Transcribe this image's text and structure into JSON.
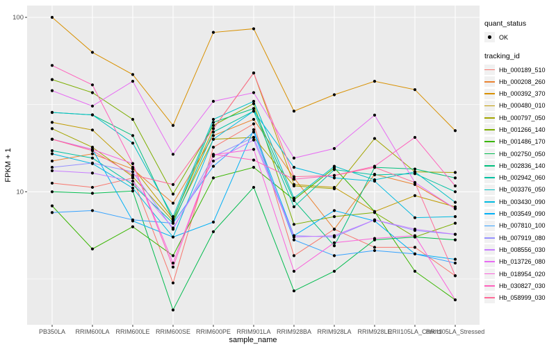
{
  "chart_data": {
    "type": "line",
    "title": "",
    "xlabel": "sample_name",
    "ylabel": "FPKM + 1",
    "y_scale": "log10",
    "ylim": [
      1.73,
      117
    ],
    "grid": "on",
    "legend_position": "right",
    "panel_bg": "#ebebeb",
    "grid_color": "#ffffff",
    "point_color": "#000000",
    "tick_label_color": "#4d4d4d",
    "y_ticks": [
      {
        "value": 10,
        "label": "10"
      },
      {
        "value": 100,
        "label": "100"
      }
    ],
    "y_minor_ticks": [
      3.162,
      31.62
    ],
    "categories": [
      "PB350LA",
      "RRIM600LA",
      "RRIM600LE",
      "RRIM600SE",
      "RRIM600PE",
      "RRIM901LA",
      "RRIM928BA",
      "RRIM928LA",
      "RRIM928LE",
      "RRII105LA_Control",
      "RRII105LA_Stressed"
    ],
    "series": [
      {
        "name": "Hb_000189_510",
        "color": "#F8766D",
        "values": [
          11.2,
          10.6,
          12,
          3,
          18,
          24.5,
          4.3,
          6.1,
          4.8,
          4.8,
          3.3
        ]
      },
      {
        "name": "Hb_000208_260",
        "color": "#EA8331",
        "values": [
          15,
          16.5,
          13.5,
          8.6,
          21,
          26,
          12,
          6.1,
          12.6,
          11,
          8
        ]
      },
      {
        "name": "Hb_000392_370",
        "color": "#D89000",
        "values": [
          100,
          63,
          47,
          24,
          82,
          86,
          29,
          36,
          43,
          38.5,
          22.4
        ]
      },
      {
        "name": "Hb_000480_010",
        "color": "#C09B00",
        "values": [
          25,
          22.6,
          13.8,
          7,
          23,
          48,
          11,
          10.6,
          7.7,
          9.5,
          8.2
        ]
      },
      {
        "name": "Hb_000797_050",
        "color": "#A3A500",
        "values": [
          23,
          18,
          12.2,
          6.8,
          20,
          20.5,
          10.8,
          10.4,
          20.2,
          13,
          12.9
        ]
      },
      {
        "name": "Hb_001266_140",
        "color": "#7CAE00",
        "values": [
          44,
          37,
          26,
          9.7,
          24,
          32,
          6.5,
          7.2,
          7.6,
          5.5,
          6.6
        ]
      },
      {
        "name": "Hb_001486_170",
        "color": "#39B600",
        "values": [
          8.3,
          4.7,
          6.3,
          4.3,
          12,
          13.8,
          9,
          13.7,
          7.7,
          3.5,
          2.4
        ]
      },
      {
        "name": "Hb_002750_050",
        "color": "#00BB4E",
        "values": [
          10,
          9.8,
          10.1,
          2.1,
          5.9,
          10.6,
          2.7,
          3.5,
          5.3,
          5.5,
          5.3
        ]
      },
      {
        "name": "Hb_002836_140",
        "color": "#00BF7D",
        "values": [
          28.5,
          27.6,
          21,
          6.9,
          25,
          30,
          8.9,
          4.9,
          13.8,
          13.5,
          12
        ]
      },
      {
        "name": "Hb_002942_060",
        "color": "#00C1A3",
        "values": [
          17.2,
          15.6,
          11,
          6.6,
          22,
          29,
          8.2,
          13.4,
          12.5,
          12.7,
          10
        ]
      },
      {
        "name": "Hb_003376_050",
        "color": "#00BFC4",
        "values": [
          28.5,
          27.6,
          19,
          7.2,
          26,
          33,
          9.2,
          14,
          11.7,
          13,
          8.7
        ]
      },
      {
        "name": "Hb_003430_090",
        "color": "#00BAE0",
        "values": [
          16.5,
          14.5,
          10.5,
          5.5,
          20,
          29,
          13.8,
          12,
          11.5,
          7.1,
          7.2
        ]
      },
      {
        "name": "Hb_003549_090",
        "color": "#00B0F6",
        "values": [
          20,
          17.5,
          6.8,
          5.5,
          6.7,
          22.7,
          5.6,
          7.8,
          6.8,
          4.4,
          4.1
        ]
      },
      {
        "name": "Hb_007810_100",
        "color": "#35A2FF",
        "values": [
          7.6,
          7.8,
          6.9,
          6.6,
          14,
          22,
          5.3,
          4.3,
          4.6,
          4.4,
          3.9
        ]
      },
      {
        "name": "Hb_007919_080",
        "color": "#9590FF",
        "values": [
          13.8,
          14.6,
          13,
          6.1,
          16,
          20.5,
          5.6,
          5.5,
          6.9,
          6,
          5.7
        ]
      },
      {
        "name": "Hb_008556_030",
        "color": "#C77CFF",
        "values": [
          13.2,
          12.8,
          11.5,
          6.2,
          15,
          19.8,
          5.5,
          5.6,
          6.9,
          6.1,
          5.7
        ]
      },
      {
        "name": "Hb_013726_080",
        "color": "#E76BF3",
        "values": [
          38,
          31,
          43,
          16.4,
          33,
          37,
          15.6,
          17.7,
          27.5,
          11.3,
          8
        ]
      },
      {
        "name": "Hb_018954_020",
        "color": "#FA62DB",
        "values": [
          20,
          17.5,
          14.5,
          3.9,
          16.3,
          17.5,
          3.5,
          5.1,
          5.4,
          5.6,
          2.4
        ]
      },
      {
        "name": "Hb_030827_030",
        "color": "#FF62BC",
        "values": [
          53,
          41,
          14.5,
          3.7,
          16.4,
          15.2,
          11.8,
          12.4,
          14,
          20.5,
          10.8
        ]
      },
      {
        "name": "Hb_058999_030",
        "color": "#FF6A98",
        "values": [
          20,
          17.2,
          12.5,
          11,
          23,
          48,
          12.2,
          12.4,
          13.8,
          11.3,
          3.3
        ]
      }
    ]
  },
  "legend": {
    "quant_status": {
      "title": "quant_status",
      "items": [
        {
          "label": "OK",
          "symbol": "point"
        }
      ]
    },
    "tracking_id_title": "tracking_id"
  }
}
